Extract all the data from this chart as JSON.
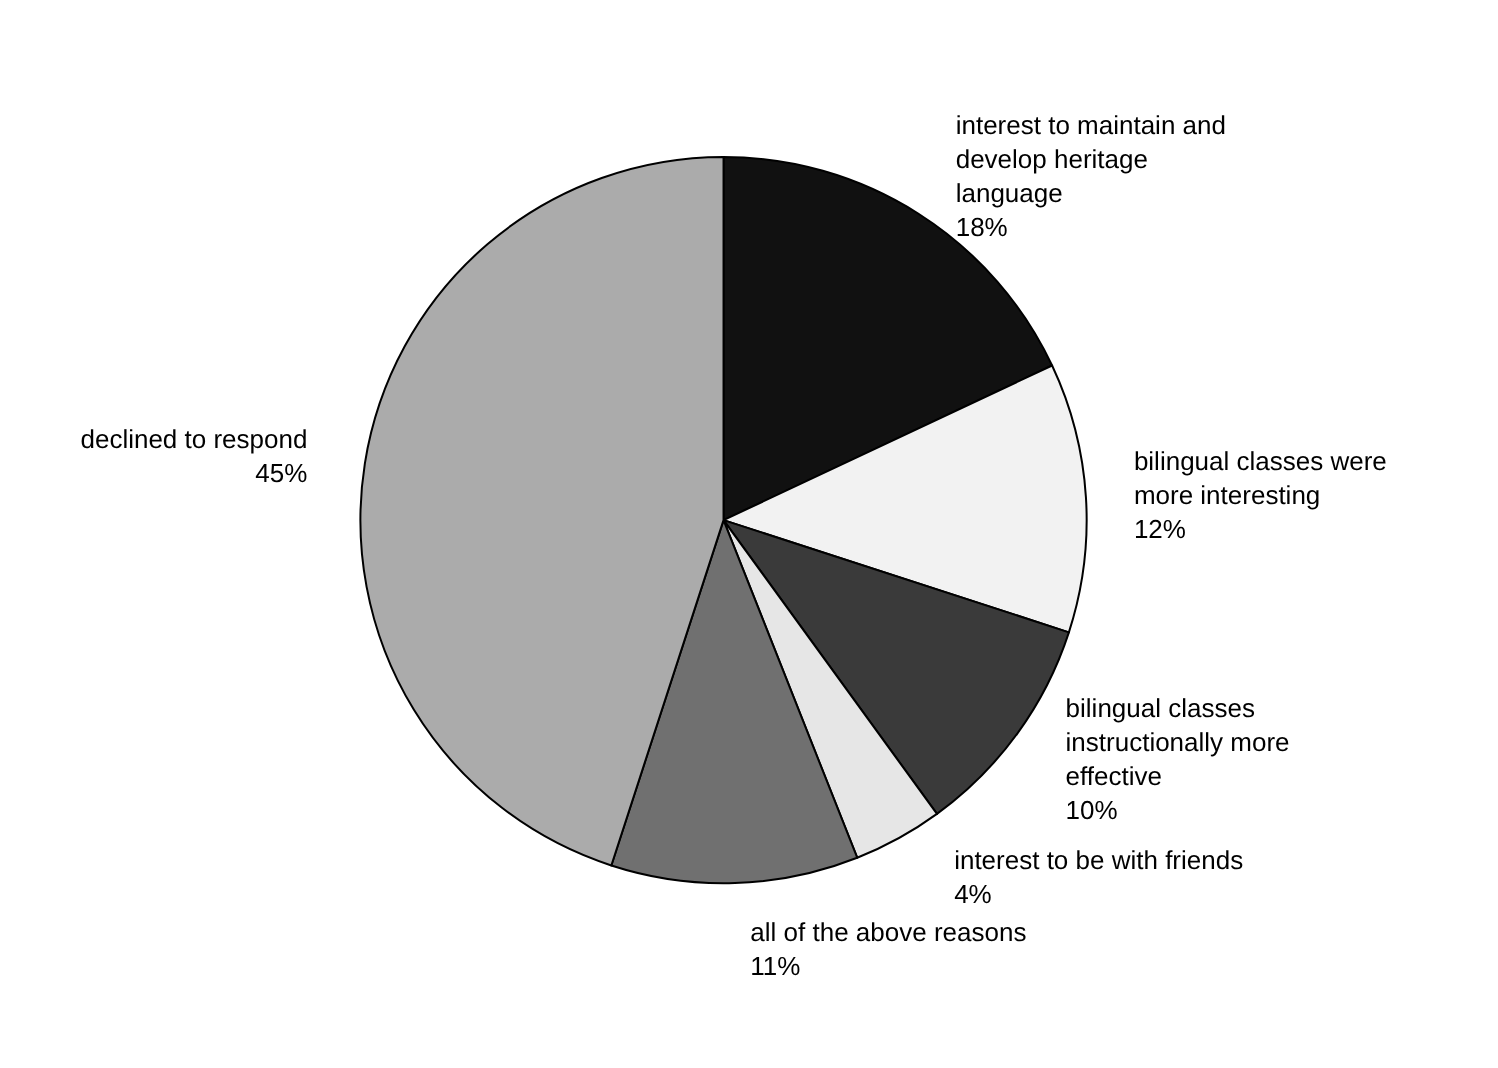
{
  "chart_data": {
    "type": "pie",
    "categories": [
      "interest to maintain and develop heritage language",
      "bilingual classes were more interesting",
      "bilingual classes instructionally more effective",
      "interest to be with friends",
      "all of the above reasons",
      "declined to respond"
    ],
    "values": [
      18,
      12,
      10,
      4,
      11,
      45
    ],
    "colors": [
      "#111111",
      "#f2f2f2",
      "#3a3a3a",
      "#e6e6e6",
      "#707070",
      "#ababab"
    ],
    "value_labels": [
      "18%",
      "12%",
      "10%",
      "4%",
      "11%",
      "45%"
    ]
  }
}
